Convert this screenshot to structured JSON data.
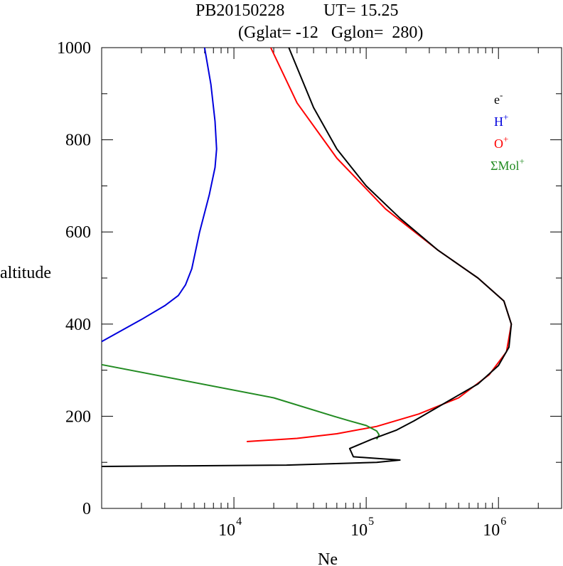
{
  "title": {
    "line1_id": "PB20150228",
    "line1_ut": "UT=  15.25",
    "line2": "(Gglat= -12   Gglon=  280)"
  },
  "chart_data": {
    "type": "line",
    "x_scale": "log",
    "xlabel": "Ne",
    "ylabel": "altitude",
    "xlim": [
      1000,
      3000000
    ],
    "ylim": [
      0,
      1000
    ],
    "x_tick_labels": [
      {
        "base": "10",
        "exp": "4",
        "value": 10000
      },
      {
        "base": "10",
        "exp": "5",
        "value": 100000
      },
      {
        "base": "10",
        "exp": "6",
        "value": 1000000
      }
    ],
    "y_tick_labels": [
      "0",
      "200",
      "400",
      "600",
      "800",
      "1000"
    ],
    "y_ticks": [
      0,
      200,
      400,
      600,
      800,
      1000
    ],
    "grid": false,
    "legend_position": "top-right",
    "series": [
      {
        "legend_base": "e",
        "legend_sup": "-",
        "color": "#000000",
        "points": [
          [
            1000,
            91
          ],
          [
            25000,
            94
          ],
          [
            120000,
            100
          ],
          [
            180000,
            105
          ],
          [
            80000,
            112
          ],
          [
            75000,
            130
          ],
          [
            110000,
            150
          ],
          [
            170000,
            170
          ],
          [
            230000,
            190
          ],
          [
            400000,
            230
          ],
          [
            700000,
            270
          ],
          [
            1000000,
            310
          ],
          [
            1200000,
            350
          ],
          [
            1250000,
            400
          ],
          [
            1100000,
            450
          ],
          [
            700000,
            500
          ],
          [
            350000,
            560
          ],
          [
            180000,
            630
          ],
          [
            100000,
            700
          ],
          [
            60000,
            780
          ],
          [
            40000,
            870
          ],
          [
            26000,
            1000
          ]
        ]
      },
      {
        "legend_base": "H",
        "legend_sup": "+",
        "color": "#0000dd",
        "points": [
          [
            1000,
            362
          ],
          [
            2000,
            410
          ],
          [
            3000,
            440
          ],
          [
            3800,
            462
          ],
          [
            4300,
            485
          ],
          [
            4800,
            520
          ],
          [
            5500,
            600
          ],
          [
            6500,
            680
          ],
          [
            7200,
            740
          ],
          [
            7400,
            780
          ],
          [
            7200,
            840
          ],
          [
            6700,
            920
          ],
          [
            6000,
            1000
          ]
        ]
      },
      {
        "legend_base": "O",
        "legend_sup": "+",
        "color": "#ff0000",
        "points": [
          [
            12500,
            145
          ],
          [
            30000,
            152
          ],
          [
            60000,
            162
          ],
          [
            120000,
            178
          ],
          [
            250000,
            205
          ],
          [
            500000,
            240
          ],
          [
            850000,
            290
          ],
          [
            1150000,
            340
          ],
          [
            1250000,
            400
          ],
          [
            1100000,
            450
          ],
          [
            700000,
            500
          ],
          [
            350000,
            560
          ],
          [
            140000,
            650
          ],
          [
            60000,
            760
          ],
          [
            30000,
            880
          ],
          [
            19000,
            1000
          ]
        ]
      },
      {
        "legend_base": "ΣMol",
        "legend_sup": "+",
        "color": "#228b22",
        "points": [
          [
            1000,
            312
          ],
          [
            20000,
            240
          ],
          [
            57000,
            200
          ],
          [
            75000,
            190
          ],
          [
            100000,
            180
          ],
          [
            120000,
            168
          ],
          [
            125000,
            160
          ],
          [
            120000,
            150
          ]
        ]
      }
    ]
  }
}
